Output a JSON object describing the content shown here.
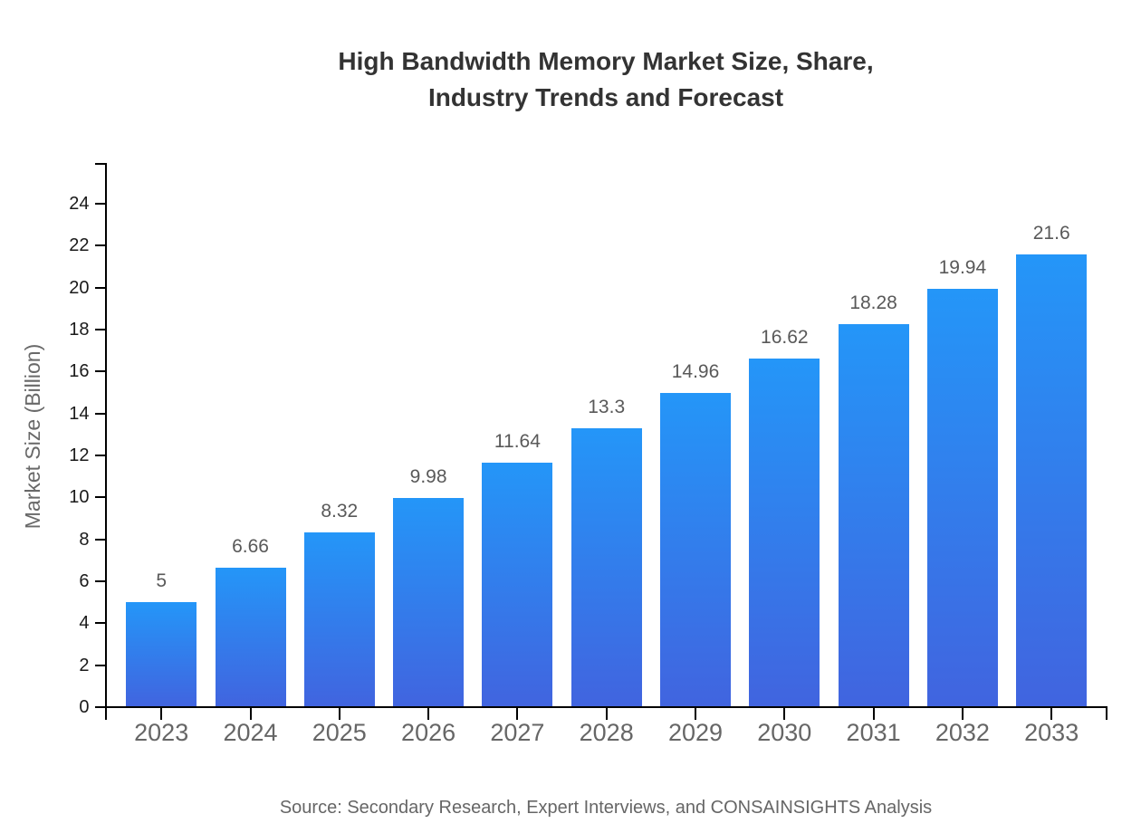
{
  "chart_data": {
    "type": "bar",
    "title": "High Bandwidth Memory Market Size, Share,\nIndustry Trends and Forecast",
    "ylabel": "Market Size (Billion)",
    "xlabel": "",
    "source": "Source: Secondary Research, Expert Interviews, and CONSAINSIGHTS Analysis",
    "categories": [
      "2023",
      "2024",
      "2025",
      "2026",
      "2027",
      "2028",
      "2029",
      "2030",
      "2031",
      "2032",
      "2033"
    ],
    "values": [
      5,
      6.66,
      8.32,
      9.98,
      11.64,
      13.3,
      14.96,
      16.62,
      18.28,
      19.94,
      21.6
    ],
    "value_labels": [
      "5",
      "6.66",
      "8.32",
      "9.98",
      "11.64",
      "13.3",
      "14.96",
      "16.62",
      "18.28",
      "19.94",
      "21.6"
    ],
    "ylim": [
      0,
      24
    ],
    "yticks": [
      0,
      2,
      4,
      6,
      8,
      10,
      12,
      14,
      16,
      18,
      20,
      22,
      24
    ],
    "grid": false,
    "legend": "none",
    "colors": {
      "background": "#ffffff",
      "bar_gradient_top": "#2496f8",
      "bar_gradient_bottom": "#4164df",
      "axis": "#000000",
      "title": "#333333",
      "ylabel": "#696969",
      "ytick_label": "#1a1a1a",
      "xtick_label": "#666666",
      "value_label": "#595959",
      "source": "#666666"
    }
  }
}
